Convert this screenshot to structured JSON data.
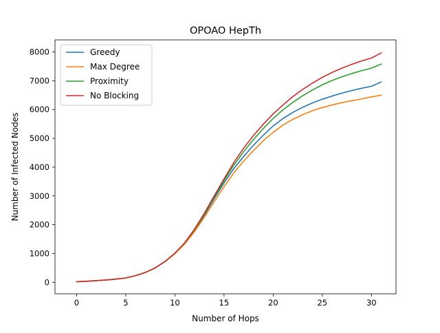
{
  "chart_data": {
    "type": "line",
    "title": "OPOAO HepTh",
    "xlabel": "Number of Hops",
    "ylabel": "Number of Infected Nodes",
    "xlim": [
      -2.2,
      32.5
    ],
    "ylim": [
      -400,
      8420
    ],
    "xticks": [
      0,
      5,
      10,
      15,
      20,
      25,
      30
    ],
    "yticks": [
      0,
      1000,
      2000,
      3000,
      4000,
      5000,
      6000,
      7000,
      8000
    ],
    "grid": false,
    "legend_position": "top-left",
    "x": [
      0,
      1,
      2,
      3,
      4,
      5,
      6,
      7,
      8,
      9,
      10,
      11,
      12,
      13,
      14,
      15,
      16,
      17,
      18,
      19,
      20,
      21,
      22,
      23,
      24,
      25,
      26,
      27,
      28,
      29,
      30,
      31
    ],
    "series": [
      {
        "name": "Greedy",
        "color": "#1f77b4",
        "values": [
          20,
          35,
          55,
          80,
          110,
          150,
          230,
          340,
          500,
          720,
          1000,
          1350,
          1800,
          2330,
          2900,
          3450,
          3950,
          4370,
          4760,
          5110,
          5430,
          5690,
          5900,
          6080,
          6230,
          6360,
          6470,
          6570,
          6660,
          6740,
          6810,
          6960
        ]
      },
      {
        "name": "Max Degree",
        "color": "#ff7f0e",
        "values": [
          20,
          35,
          55,
          80,
          110,
          150,
          230,
          340,
          500,
          720,
          990,
          1330,
          1760,
          2260,
          2800,
          3320,
          3800,
          4210,
          4580,
          4920,
          5210,
          5460,
          5660,
          5820,
          5960,
          6070,
          6160,
          6240,
          6310,
          6370,
          6440,
          6500
        ]
      },
      {
        "name": "Proximity",
        "color": "#2ca02c",
        "values": [
          20,
          35,
          55,
          80,
          110,
          150,
          230,
          340,
          500,
          720,
          1005,
          1365,
          1820,
          2360,
          2950,
          3530,
          4070,
          4540,
          4960,
          5340,
          5690,
          5990,
          6250,
          6480,
          6680,
          6860,
          7010,
          7140,
          7250,
          7350,
          7440,
          7580
        ]
      },
      {
        "name": "No Blocking",
        "color": "#d62728",
        "values": [
          20,
          35,
          55,
          80,
          110,
          150,
          230,
          340,
          500,
          725,
          1010,
          1375,
          1845,
          2400,
          3000,
          3590,
          4160,
          4660,
          5100,
          5490,
          5850,
          6160,
          6450,
          6700,
          6920,
          7120,
          7290,
          7440,
          7570,
          7690,
          7790,
          7970
        ]
      }
    ]
  }
}
